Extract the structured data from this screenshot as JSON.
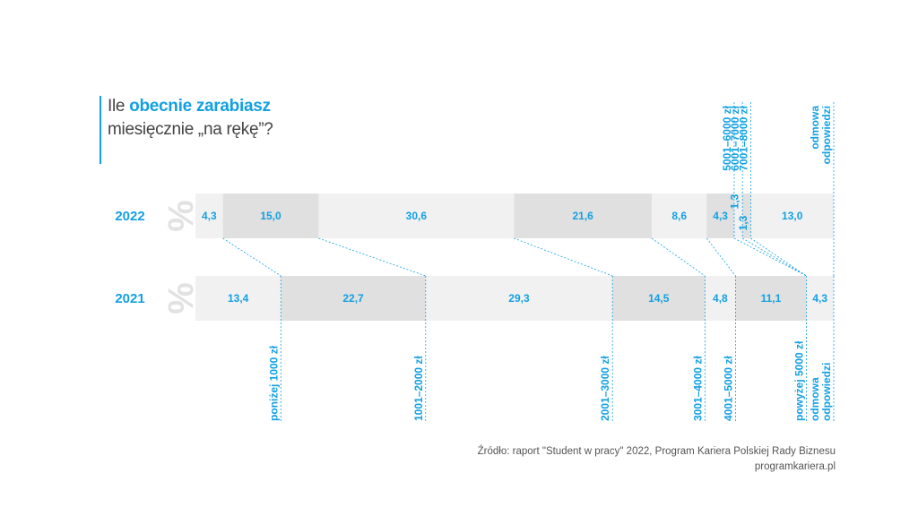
{
  "title": {
    "prefix": "Ile ",
    "highlight": "obecnie zarabiasz",
    "line2": "miesięcznie „na rękę”?"
  },
  "source": {
    "line1": "Źródło: raport \"Student w pracy\" 2022, Program Kariera Polskiej Rady Biznesu",
    "line2": "programkariera.pl"
  },
  "percent_symbol": "%",
  "colors": {
    "accent": "#12a0e3",
    "band_light": "#f1f1f1",
    "band_dark": "#e0e0e0",
    "percent_mark": "#e2e2e2"
  },
  "chart_data": {
    "type": "bar",
    "orientation": "horizontal-stacked-100",
    "unit": "%",
    "rows": [
      {
        "year": "2022",
        "values": [
          4.3,
          15.0,
          30.6,
          21.6,
          8.6,
          4.3,
          1.3,
          1.3,
          13.0
        ],
        "labels": [
          "4,3",
          "15,0",
          "30,6",
          "21,6",
          "8,6",
          "4,3",
          "1,3",
          "1,3",
          "13,0"
        ]
      },
      {
        "year": "2021",
        "values": [
          13.4,
          22.7,
          29.3,
          14.5,
          4.8,
          11.1,
          4.3
        ],
        "labels": [
          "13,4",
          "22,7",
          "29,3",
          "14,5",
          "4,8",
          "11,1",
          "4,3"
        ]
      }
    ],
    "categories_2022": [
      "poniżej 1000 zł",
      "1001–2000 zł",
      "2001–3000 zł",
      "3001–4000 zł",
      "4001–5000 zł",
      "5001–6000 zł",
      "6001–7000 zł",
      "7001–8000 zł",
      "odmowa odpowiedzi"
    ],
    "categories_2021": [
      "poniżej 1000 zł",
      "1001–2000 zł",
      "2001–3000 zł",
      "3001–4000 zł",
      "4001–5000 zł",
      "powyżej 5000 zł",
      "odmowa odpowiedzi"
    ],
    "top_labels": [
      {
        "lines": [
          "5001–6000 zł"
        ],
        "after_segment": 5
      },
      {
        "lines": [
          "6001–7000 zł"
        ],
        "after_segment": 6
      },
      {
        "lines": [
          "7001–8000 zł"
        ],
        "after_segment": 7
      },
      {
        "lines": [
          "odmowa",
          "odpowiedzi"
        ],
        "after_segment": 8
      }
    ],
    "bottom_labels": [
      {
        "lines": [
          "poniżej 1000 zł"
        ],
        "after_segment": 0
      },
      {
        "lines": [
          "1001–2000 zł"
        ],
        "after_segment": 1
      },
      {
        "lines": [
          "2001–3000 zł"
        ],
        "after_segment": 2
      },
      {
        "lines": [
          "3001–4000 zł"
        ],
        "after_segment": 3
      },
      {
        "lines": [
          "4001–5000 zł"
        ],
        "after_segment": 4
      },
      {
        "lines": [
          "powyżej 5000 zł"
        ],
        "after_segment": 5
      },
      {
        "lines": [
          "odmowa",
          "odpowiedzi"
        ],
        "after_segment": 6
      }
    ],
    "connections": [
      [
        0,
        0
      ],
      [
        1,
        1
      ],
      [
        2,
        2
      ],
      [
        3,
        3
      ],
      [
        4,
        4
      ],
      [
        5,
        5
      ],
      [
        6,
        5
      ],
      [
        7,
        5
      ],
      [
        8,
        6
      ]
    ],
    "legend": "none",
    "grid": false
  }
}
